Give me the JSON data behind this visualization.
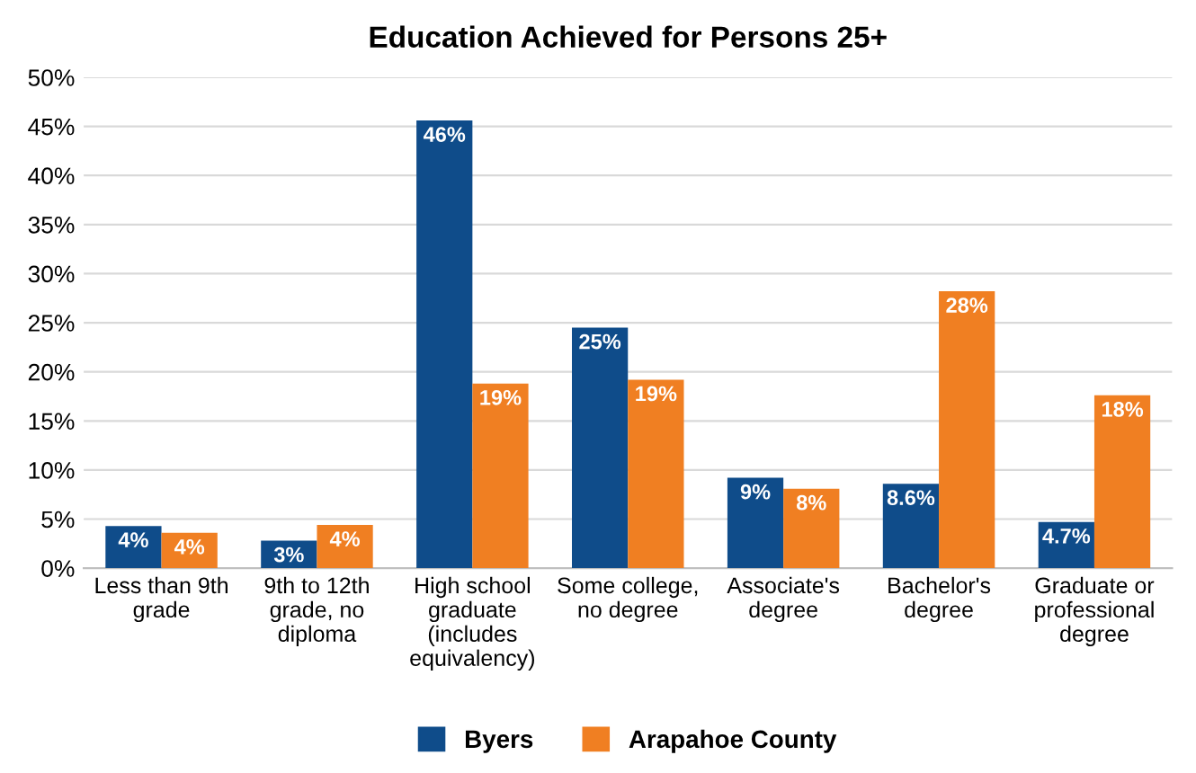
{
  "chart_data": {
    "type": "bar",
    "title": "Education Achieved for Persons 25+",
    "categories": [
      "Less than 9th\ngrade",
      "9th to 12th\ngrade, no\ndiploma",
      "High school\ngraduate\n(includes\nequivalency)",
      "Some college,\nno degree",
      "Associate's\ndegree",
      "Bachelor's\ndegree",
      "Graduate or\nprofessional\ndegree"
    ],
    "series": [
      {
        "name": "Byers",
        "color": "#0f4c8a",
        "values": [
          4.3,
          2.8,
          45.6,
          24.5,
          9.2,
          8.6,
          4.7
        ],
        "value_labels": [
          "4%",
          "3%",
          "46%",
          "25%",
          "9%",
          "8.6%",
          "4.7%"
        ]
      },
      {
        "name": "Arapahoe County",
        "color": "#f07f22",
        "values": [
          3.6,
          4.4,
          18.8,
          19.2,
          8.1,
          28.2,
          17.6
        ],
        "value_labels": [
          "4%",
          "4%",
          "19%",
          "19%",
          "8%",
          "28%",
          "18%"
        ]
      }
    ],
    "ylim": [
      0,
      50
    ],
    "yticks": [
      {
        "value": 0,
        "label": "0%"
      },
      {
        "value": 5,
        "label": "5%"
      },
      {
        "value": 10,
        "label": "10%"
      },
      {
        "value": 15,
        "label": "15%"
      },
      {
        "value": 20,
        "label": "20%"
      },
      {
        "value": 25,
        "label": "25%"
      },
      {
        "value": 30,
        "label": "30%"
      },
      {
        "value": 35,
        "label": "35%"
      },
      {
        "value": 40,
        "label": "40%"
      },
      {
        "value": 45,
        "label": "45%"
      },
      {
        "value": 50,
        "label": "50%"
      }
    ],
    "grid": "y",
    "legend": "bottom"
  }
}
